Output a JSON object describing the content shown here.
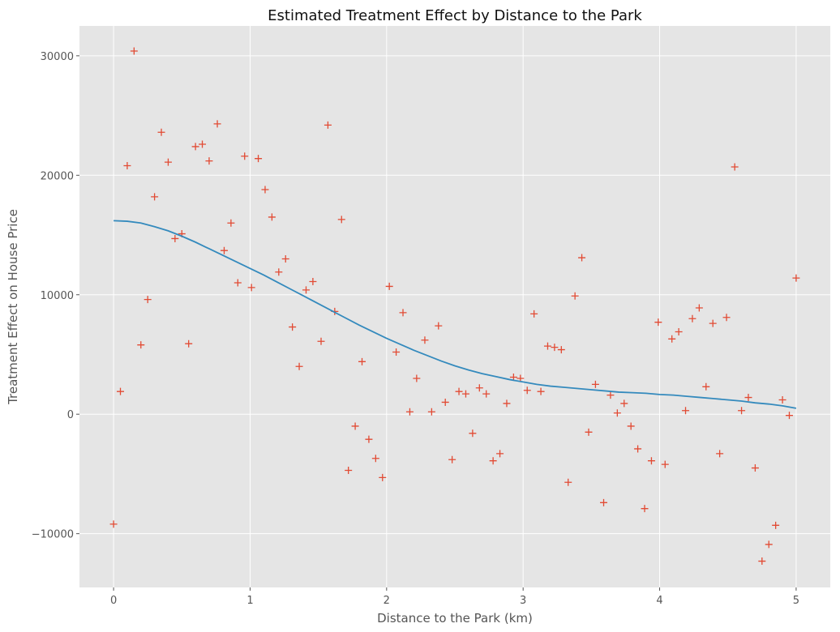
{
  "chart_data": {
    "type": "scatter",
    "title": "Estimated Treatment Effect by Distance to the Park",
    "xlabel": "Distance to the Park (km)",
    "ylabel": "Treatment Effect on House Price",
    "xlim": [
      -0.25,
      5.25
    ],
    "ylim": [
      -14500,
      32500
    ],
    "xticks": [
      0,
      1,
      2,
      3,
      4,
      5
    ],
    "xtick_labels": [
      "0",
      "1",
      "2",
      "3",
      "4",
      "5"
    ],
    "yticks": [
      -10000,
      0,
      10000,
      20000,
      30000
    ],
    "ytick_labels": [
      "−10000",
      "0",
      "10000",
      "20000",
      "30000"
    ],
    "grid": true,
    "colors": {
      "background": "#e5e5e5",
      "grid": "#ffffff",
      "points": "#e24a33",
      "line": "#348abd"
    },
    "series": [
      {
        "type": "scatter",
        "marker": "plus",
        "x": [
          0.0,
          0.05,
          0.1,
          0.15,
          0.2,
          0.25,
          0.3,
          0.35,
          0.4,
          0.45,
          0.5,
          0.55,
          0.6,
          0.65,
          0.7,
          0.76,
          0.81,
          0.86,
          0.91,
          0.96,
          1.01,
          1.06,
          1.11,
          1.16,
          1.21,
          1.26,
          1.31,
          1.36,
          1.41,
          1.46,
          1.52,
          1.57,
          1.62,
          1.67,
          1.72,
          1.77,
          1.82,
          1.87,
          1.92,
          1.97,
          2.02,
          2.07,
          2.12,
          2.17,
          2.22,
          2.28,
          2.33,
          2.38,
          2.43,
          2.48,
          2.53,
          2.58,
          2.63,
          2.68,
          2.73,
          2.78,
          2.83,
          2.88,
          2.93,
          2.98,
          3.03,
          3.08,
          3.13,
          3.18,
          3.23,
          3.28,
          3.33,
          3.38,
          3.43,
          3.48,
          3.53,
          3.59,
          3.64,
          3.69,
          3.74,
          3.79,
          3.84,
          3.89,
          3.94,
          3.99,
          4.04,
          4.09,
          4.14,
          4.19,
          4.24,
          4.29,
          4.34,
          4.39,
          4.44,
          4.49,
          4.55,
          4.6,
          4.65,
          4.7,
          4.75,
          4.8,
          4.85,
          4.9,
          4.95,
          5.0
        ],
        "y": [
          -9200,
          1900,
          20800,
          30400,
          5800,
          9600,
          18200,
          23600,
          21100,
          14700,
          15100,
          5900,
          22400,
          22600,
          21200,
          24300,
          13700,
          16000,
          11000,
          21600,
          10600,
          21400,
          18800,
          16500,
          11900,
          13000,
          7300,
          4000,
          10400,
          11100,
          6100,
          24200,
          8600,
          16300,
          -4700,
          -1000,
          4400,
          -2100,
          -3700,
          -5300,
          10700,
          5200,
          8500,
          200,
          3000,
          6200,
          200,
          7400,
          1000,
          -3800,
          1900,
          1700,
          -1600,
          2200,
          1700,
          -3900,
          -3300,
          900,
          3100,
          3000,
          2000,
          8400,
          1900,
          5700,
          5600,
          5400,
          -5700,
          9900,
          13100,
          -1500,
          2500,
          -7400,
          1600,
          100,
          900,
          -1000,
          -2900,
          -7900,
          -3900,
          7700,
          -4200,
          6300,
          6900,
          300,
          8000,
          8900,
          2300,
          7600,
          -3300,
          8100,
          20700,
          300,
          1400,
          -4500,
          -12300,
          -10900,
          -9300,
          1200,
          -100,
          11400
        ]
      },
      {
        "type": "line",
        "x": [
          0.0,
          0.1,
          0.2,
          0.3,
          0.4,
          0.5,
          0.6,
          0.7,
          0.8,
          0.9,
          1.0,
          1.1,
          1.2,
          1.3,
          1.4,
          1.5,
          1.6,
          1.7,
          1.8,
          1.9,
          2.0,
          2.1,
          2.2,
          2.3,
          2.4,
          2.5,
          2.6,
          2.7,
          2.8,
          2.9,
          3.0,
          3.1,
          3.2,
          3.3,
          3.4,
          3.5,
          3.6,
          3.7,
          3.8,
          3.9,
          4.0,
          4.1,
          4.2,
          4.3,
          4.4,
          4.5,
          4.6,
          4.7,
          4.8,
          4.9,
          5.0
        ],
        "y": [
          16200,
          16150,
          16000,
          15700,
          15350,
          14900,
          14400,
          13850,
          13300,
          12750,
          12200,
          11650,
          11050,
          10450,
          9850,
          9250,
          8650,
          8050,
          7450,
          6900,
          6350,
          5850,
          5350,
          4900,
          4450,
          4050,
          3700,
          3400,
          3150,
          2900,
          2700,
          2500,
          2350,
          2250,
          2150,
          2050,
          1950,
          1850,
          1800,
          1750,
          1650,
          1600,
          1500,
          1400,
          1300,
          1200,
          1100,
          950,
          850,
          700,
          500
        ]
      }
    ]
  }
}
